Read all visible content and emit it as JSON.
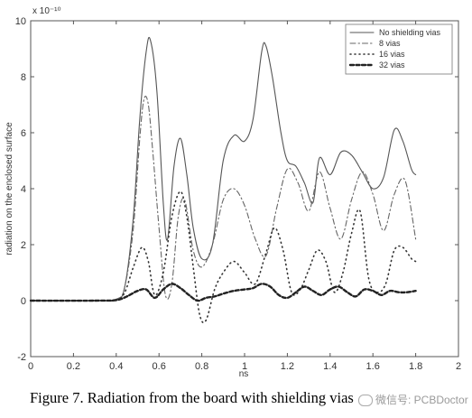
{
  "chart_data": {
    "type": "line",
    "xlabel": "ns",
    "ylabel": "radiation on the enclosed surface",
    "y_exponent": "x 10⁻¹⁰",
    "xlim": [
      0,
      2
    ],
    "ylim": [
      -2,
      10
    ],
    "xticks": [
      "0",
      "0.2",
      "0.4",
      "0.6",
      "0.8",
      "1",
      "1.2",
      "1.4",
      "1.6",
      "1.8",
      "2"
    ],
    "yticks": [
      "-2",
      "0",
      "2",
      "4",
      "6",
      "8",
      "10"
    ],
    "legend_position": "top-right",
    "series": [
      {
        "name": "No shielding vias",
        "style": "solid",
        "color": "#555555",
        "x": [
          0,
          0.3,
          0.4,
          0.44,
          0.48,
          0.51,
          0.54,
          0.56,
          0.59,
          0.62,
          0.64,
          0.67,
          0.7,
          0.73,
          0.76,
          0.8,
          0.85,
          0.9,
          0.95,
          1.0,
          1.04,
          1.08,
          1.1,
          1.13,
          1.17,
          1.2,
          1.24,
          1.28,
          1.32,
          1.35,
          1.4,
          1.45,
          1.5,
          1.55,
          1.6,
          1.65,
          1.7,
          1.74,
          1.78,
          1.8
        ],
        "y": [
          0,
          0,
          0.05,
          0.5,
          3.0,
          6.5,
          8.9,
          9.3,
          7.5,
          3.5,
          2.2,
          4.8,
          5.8,
          4.5,
          2.6,
          1.5,
          2.0,
          5.0,
          5.9,
          5.7,
          6.5,
          8.9,
          9.1,
          8.0,
          6.0,
          5.0,
          4.8,
          4.2,
          3.5,
          5.1,
          4.5,
          5.3,
          5.2,
          4.6,
          4.0,
          4.4,
          6.1,
          5.7,
          4.7,
          4.5
        ]
      },
      {
        "name": "8 vias",
        "style": "dashdot",
        "color": "#666666",
        "x": [
          0,
          0.3,
          0.4,
          0.44,
          0.48,
          0.51,
          0.53,
          0.55,
          0.57,
          0.6,
          0.63,
          0.66,
          0.69,
          0.72,
          0.76,
          0.8,
          0.85,
          0.9,
          0.95,
          1.0,
          1.05,
          1.1,
          1.15,
          1.2,
          1.25,
          1.3,
          1.35,
          1.4,
          1.45,
          1.5,
          1.55,
          1.6,
          1.65,
          1.7,
          1.75,
          1.8
        ],
        "y": [
          0,
          0,
          0.05,
          0.5,
          2.6,
          5.8,
          7.2,
          7.0,
          5.4,
          2.6,
          0.2,
          0.6,
          3.0,
          3.6,
          1.8,
          1.2,
          2.0,
          3.6,
          4.0,
          3.4,
          2.2,
          1.6,
          3.3,
          4.7,
          4.2,
          3.2,
          4.6,
          3.3,
          2.2,
          3.6,
          4.6,
          3.8,
          2.5,
          3.8,
          4.3,
          2.2
        ]
      },
      {
        "name": "16 vias",
        "style": "dotted",
        "color": "#333333",
        "x": [
          0,
          0.3,
          0.4,
          0.44,
          0.48,
          0.52,
          0.55,
          0.58,
          0.62,
          0.66,
          0.7,
          0.73,
          0.76,
          0.79,
          0.82,
          0.86,
          0.9,
          0.95,
          1.0,
          1.05,
          1.1,
          1.14,
          1.18,
          1.22,
          1.26,
          1.3,
          1.34,
          1.38,
          1.42,
          1.46,
          1.5,
          1.54,
          1.58,
          1.62,
          1.66,
          1.7,
          1.74,
          1.78,
          1.8
        ],
        "y": [
          0,
          0,
          0.02,
          0.3,
          1.2,
          1.9,
          1.4,
          0.2,
          1.0,
          3.0,
          3.9,
          3.0,
          1.2,
          -0.5,
          -0.7,
          0.4,
          1.0,
          1.4,
          1.0,
          0.6,
          1.7,
          2.6,
          1.8,
          0.3,
          0.4,
          1.1,
          1.8,
          1.4,
          0.3,
          1.0,
          2.4,
          3.2,
          0.8,
          0.3,
          0.6,
          1.8,
          1.9,
          1.5,
          1.4
        ]
      },
      {
        "name": "32 vias",
        "style": "dashed",
        "color": "#222222",
        "x": [
          0,
          0.3,
          0.4,
          0.45,
          0.5,
          0.54,
          0.58,
          0.62,
          0.66,
          0.7,
          0.74,
          0.78,
          0.82,
          0.86,
          0.9,
          0.95,
          1.0,
          1.04,
          1.08,
          1.12,
          1.16,
          1.2,
          1.24,
          1.28,
          1.32,
          1.36,
          1.4,
          1.44,
          1.48,
          1.52,
          1.56,
          1.6,
          1.64,
          1.68,
          1.72,
          1.76,
          1.8
        ],
        "y": [
          0,
          0,
          0.02,
          0.15,
          0.35,
          0.4,
          0.1,
          0.4,
          0.6,
          0.45,
          0.2,
          0.0,
          0.1,
          0.15,
          0.25,
          0.35,
          0.4,
          0.45,
          0.6,
          0.5,
          0.2,
          0.1,
          0.3,
          0.5,
          0.35,
          0.2,
          0.4,
          0.5,
          0.3,
          0.15,
          0.4,
          0.35,
          0.2,
          0.35,
          0.3,
          0.3,
          0.35
        ]
      }
    ]
  },
  "caption": "Figure 7. Radiation from the board with shielding vias",
  "watermark": "微信号: PCBDoctor"
}
